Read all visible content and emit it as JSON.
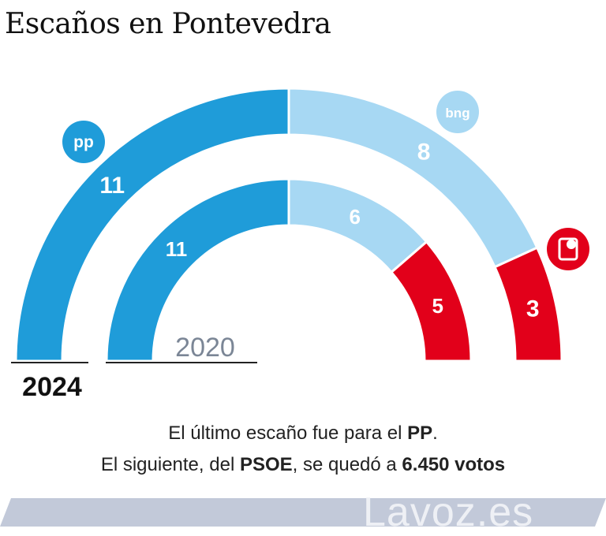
{
  "page": {
    "title": "Escaños en Pontevedra",
    "brand": "Lavoz.es"
  },
  "chart_data": {
    "type": "semicircle-parliament",
    "total_seats": 22,
    "elections": [
      {
        "year": "2024",
        "parties": [
          {
            "party": "PP",
            "seats": 11,
            "color": "#1f9cd9"
          },
          {
            "party": "BNG",
            "seats": 8,
            "color": "#a7d8f3"
          },
          {
            "party": "PSOE",
            "seats": 3,
            "color": "#e2001a"
          }
        ]
      },
      {
        "year": "2020",
        "parties": [
          {
            "party": "PP",
            "seats": 11,
            "color": "#1f9cd9"
          },
          {
            "party": "BNG",
            "seats": 6,
            "color": "#a7d8f3"
          },
          {
            "party": "PSOE",
            "seats": 5,
            "color": "#e2001a"
          }
        ]
      }
    ],
    "logos": [
      {
        "party": "PP",
        "label": "pp",
        "color": "#1f9cd9"
      },
      {
        "party": "BNG",
        "label": "bng",
        "color": "#a7d8f3"
      },
      {
        "party": "PSOE",
        "label": "",
        "color": "#e2001a"
      }
    ]
  },
  "note": {
    "line1_prefix": "El último escaño fue para el ",
    "line1_bold": "PP",
    "line1_suffix": ".",
    "line2_prefix": "El siguiente, del ",
    "line2_bold1": "PSOE",
    "line2_mid": ", se quedó a ",
    "line2_bold2": "6.450 votos"
  },
  "colors": {
    "footer_band": "#c2c9d9",
    "year_2020_text": "#7b8696"
  }
}
